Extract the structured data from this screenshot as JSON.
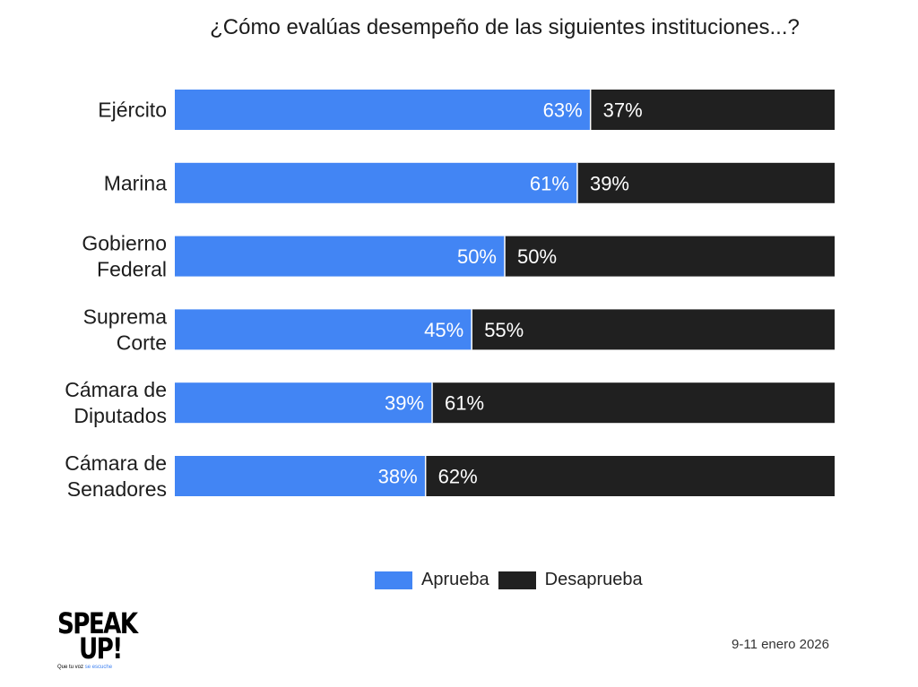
{
  "title": "¿Cómo evalúas desempeño de las siguientes instituciones...?",
  "colors": {
    "aprueba": "#4285f4",
    "desaprueba": "#202020"
  },
  "chart_data": {
    "type": "bar",
    "orientation": "horizontal",
    "stacked": true,
    "percent": true,
    "categories": [
      [
        "Ejército"
      ],
      [
        "Marina"
      ],
      [
        "Gobierno",
        "Federal"
      ],
      [
        "Suprema",
        "Corte"
      ],
      [
        "Cámara de",
        "Diputados"
      ],
      [
        "Cámara de",
        "Senadores"
      ]
    ],
    "series": [
      {
        "name": "Aprueba",
        "values": [
          63,
          61,
          50,
          45,
          39,
          38
        ]
      },
      {
        "name": "Desaprueba",
        "values": [
          37,
          39,
          50,
          55,
          61,
          62
        ]
      }
    ],
    "data_labels": [
      [
        "63%",
        "61%",
        "50%",
        "45%",
        "39%",
        "38%"
      ],
      [
        "37%",
        "39%",
        "50%",
        "55%",
        "61%",
        "62%"
      ]
    ],
    "xlim": [
      0,
      100
    ],
    "legend_position": "bottom"
  },
  "legend": {
    "aprueba": "Aprueba",
    "desaprueba": "Desaprueba"
  },
  "date": "9-11 enero 2026",
  "logo": {
    "line1": "SPEAK",
    "line2": "UP!",
    "tagline_a": "Que tu voz",
    "tagline_b": "se escuche"
  }
}
